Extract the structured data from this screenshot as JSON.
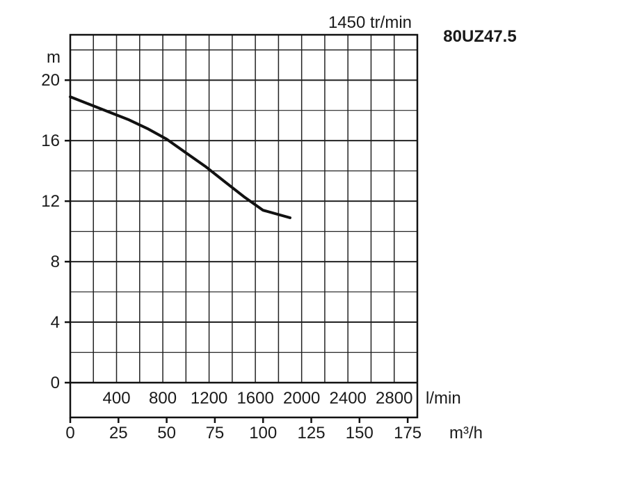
{
  "chart_data": {
    "type": "line",
    "model": "80UZ47.5",
    "speed": "1450 tr/min",
    "y_unit": "m",
    "y_ticks": [
      "20",
      "16",
      "12",
      "8",
      "4",
      "0"
    ],
    "y_tick_values": [
      20,
      16,
      12,
      8,
      4,
      0
    ],
    "ylim": [
      0,
      23
    ],
    "lmin_unit": "l/min",
    "lmin_ticks": [
      "400",
      "800",
      "1200",
      "1600",
      "2000",
      "2400",
      "2800"
    ],
    "lmin_tick_values": [
      400,
      800,
      1200,
      1600,
      2000,
      2400,
      2800
    ],
    "m3h_unit": "m³/h",
    "m3h_ticks": [
      "0",
      "25",
      "50",
      "75",
      "100",
      "125",
      "150",
      "175"
    ],
    "m3h_tick_values": [
      0,
      25,
      50,
      75,
      100,
      125,
      150,
      175
    ],
    "xlim": [
      0,
      180
    ],
    "grid": true,
    "series": [
      {
        "x": [
          0,
          10,
          20,
          30,
          40,
          50,
          60,
          70,
          80,
          90,
          100,
          114
        ],
        "y": [
          18.9,
          18.4,
          17.9,
          17.4,
          16.8,
          16.1,
          15.2,
          14.3,
          13.3,
          12.3,
          11.4,
          10.9
        ]
      }
    ]
  }
}
